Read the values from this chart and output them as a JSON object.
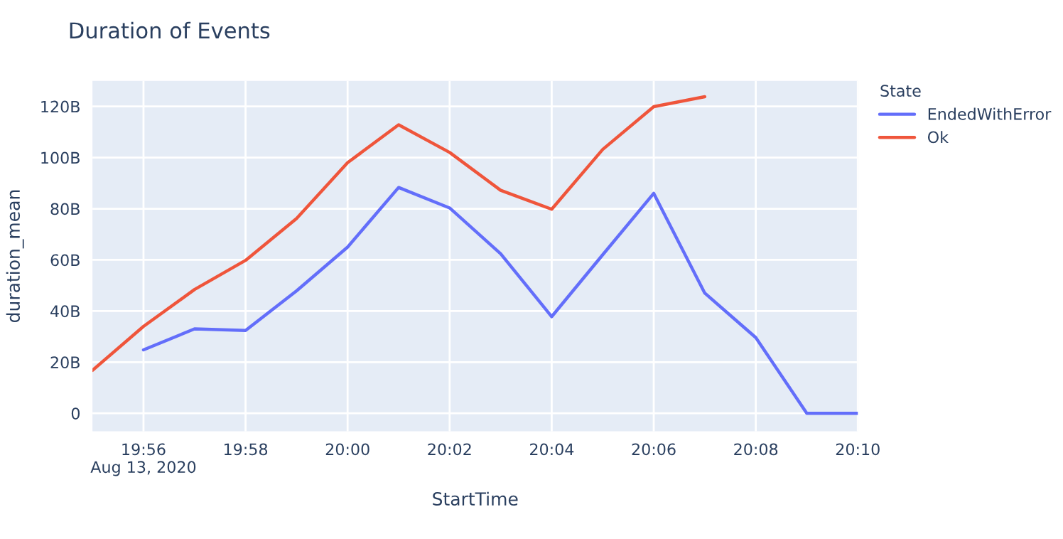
{
  "chart_data": {
    "type": "line",
    "title": "Duration of Events",
    "xlabel": "StartTime",
    "ylabel": "duration_mean",
    "legend_title": "State",
    "x": [
      "2020-08-13T19:55",
      "2020-08-13T19:56",
      "2020-08-13T19:57",
      "2020-08-13T19:58",
      "2020-08-13T19:59",
      "2020-08-13T20:00",
      "2020-08-13T20:01",
      "2020-08-13T20:02",
      "2020-08-13T20:03",
      "2020-08-13T20:04",
      "2020-08-13T20:05",
      "2020-08-13T20:06",
      "2020-08-13T20:07",
      "2020-08-13T20:08",
      "2020-08-13T20:09",
      "2020-08-13T20:10"
    ],
    "series": [
      {
        "name": "EndedWithError",
        "color": "#636efa",
        "values": [
          null,
          24.8,
          33,
          32.4,
          47.9,
          65,
          88.3,
          80.3,
          62.4,
          37.8,
          62,
          86,
          47,
          29.6,
          0,
          0
        ]
      },
      {
        "name": "Ok",
        "color": "#ef553b",
        "values": [
          16.8,
          34,
          48.4,
          59.8,
          76.2,
          98,
          112.8,
          102,
          87.2,
          79.8,
          103.2,
          119.9,
          123.8,
          null,
          null,
          null
        ]
      }
    ],
    "xlim": [
      "2020-08-13T19:55",
      "2020-08-13T20:10"
    ],
    "xticks": [
      {
        "value": "2020-08-13T19:56",
        "label": "19:56\nAug 13, 2020"
      },
      {
        "value": "2020-08-13T19:58",
        "label": "19:58"
      },
      {
        "value": "2020-08-13T20:00",
        "label": "20:00"
      },
      {
        "value": "2020-08-13T20:02",
        "label": "20:02"
      },
      {
        "value": "2020-08-13T20:04",
        "label": "20:04"
      },
      {
        "value": "2020-08-13T20:06",
        "label": "20:06"
      },
      {
        "value": "2020-08-13T20:08",
        "label": "20:08"
      },
      {
        "value": "2020-08-13T20:10",
        "label": "20:10"
      }
    ],
    "ylim": [
      -7,
      130
    ],
    "yticks": [
      0,
      {
        "value": 20,
        "label": "20B"
      },
      {
        "value": 40,
        "label": "40B"
      },
      {
        "value": 60,
        "label": "60B"
      },
      {
        "value": 80,
        "label": "80B"
      },
      {
        "value": 100,
        "label": "100B"
      },
      {
        "value": 120,
        "label": "120B"
      }
    ],
    "grid": true,
    "legend": "top right",
    "marker": "none",
    "line_style": "solid"
  }
}
